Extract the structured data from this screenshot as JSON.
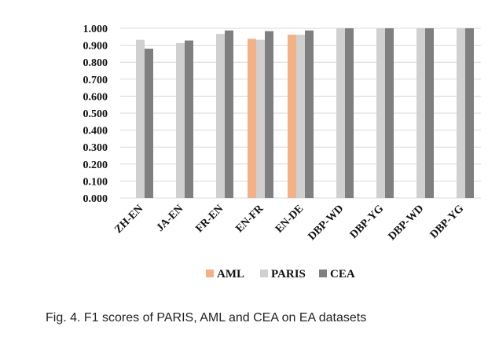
{
  "caption": "Fig. 4. F1 scores of PARIS, AML and CEA on EA datasets",
  "chart_data": {
    "type": "bar",
    "categories": [
      "ZH-EN",
      "JA-EN",
      "FR-EN",
      "EN-FR",
      "EN-DE",
      "DBP-WD",
      "DBP-YG",
      "DBP-WD",
      "DBP-YG"
    ],
    "series": [
      {
        "name": "AML",
        "color": "#F4B183",
        "values": [
          null,
          null,
          null,
          0.938,
          0.962,
          null,
          null,
          null,
          null
        ]
      },
      {
        "name": "PARIS",
        "color": "#D0D0D0",
        "values": [
          0.932,
          0.913,
          0.967,
          0.932,
          0.962,
          1.0,
          1.0,
          1.0,
          1.0
        ]
      },
      {
        "name": "CEA",
        "color": "#7F7F7F",
        "values": [
          0.88,
          0.928,
          0.987,
          0.983,
          0.987,
          1.0,
          1.0,
          1.0,
          1.0
        ]
      }
    ],
    "yticks": [
      "0.000",
      "0.100",
      "0.200",
      "0.300",
      "0.400",
      "0.500",
      "0.600",
      "0.700",
      "0.800",
      "0.900",
      "1.000"
    ],
    "ylim": [
      0,
      1.0
    ],
    "grid": true,
    "legend_position": "bottom"
  }
}
